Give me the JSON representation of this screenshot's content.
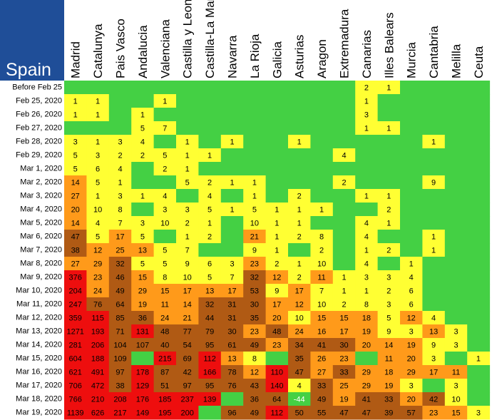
{
  "chart_data": {
    "type": "heatmap",
    "title": "Spain",
    "regions": [
      "Madrid",
      "Catalunya",
      "Pais Vasco",
      "Andalucia",
      "Valenciana",
      "Castilla y Leon",
      "Castilla-La Mancha",
      "Navarra",
      "La Rioja",
      "Galicia",
      "Asturias",
      "Aragon",
      "Extremadura",
      "Canarias",
      "Illes Balears",
      "Murcia",
      "Cantabria",
      "Melilla",
      "Ceuta"
    ],
    "dates": [
      "Before Feb 25",
      "Feb 25, 2020",
      "Feb 26, 2020",
      "Feb 27, 2020",
      "Feb 28, 2020",
      "Feb 29, 2020",
      "Mar 1, 2020",
      "Mar 2, 2020",
      "Mar 3, 2020",
      "Mar 4, 2020",
      "Mar 5, 2020",
      "Mar 6, 2020",
      "Mar 7, 2020",
      "Mar 8, 2020",
      "Mar 9, 2020",
      "Mar 10, 2020",
      "Mar 11, 2020",
      "Mar 12, 2020",
      "Mar 13, 2020",
      "Mar 14, 2020",
      "Mar 15, 2020",
      "Mar 16, 2020",
      "Mar 17, 2020",
      "Mar 18, 2020",
      "Mar 19, 2020"
    ],
    "values": [
      [
        null,
        null,
        null,
        null,
        null,
        null,
        null,
        null,
        null,
        null,
        null,
        null,
        null,
        2,
        1,
        null,
        null,
        null,
        null
      ],
      [
        1,
        1,
        null,
        null,
        1,
        null,
        null,
        null,
        null,
        null,
        null,
        null,
        null,
        1,
        null,
        null,
        null,
        null,
        null
      ],
      [
        1,
        1,
        null,
        1,
        null,
        null,
        null,
        null,
        null,
        null,
        null,
        null,
        null,
        3,
        null,
        null,
        null,
        null,
        null
      ],
      [
        null,
        null,
        null,
        5,
        7,
        null,
        null,
        null,
        null,
        null,
        null,
        null,
        null,
        1,
        1,
        null,
        null,
        null,
        null
      ],
      [
        3,
        1,
        3,
        4,
        null,
        1,
        null,
        1,
        null,
        null,
        1,
        null,
        null,
        null,
        null,
        null,
        1,
        null,
        null
      ],
      [
        5,
        3,
        2,
        2,
        5,
        1,
        1,
        null,
        null,
        null,
        null,
        null,
        4,
        null,
        null,
        null,
        null,
        null,
        null
      ],
      [
        5,
        6,
        4,
        null,
        2,
        1,
        null,
        null,
        null,
        null,
        null,
        null,
        null,
        null,
        null,
        null,
        null,
        null,
        null
      ],
      [
        14,
        5,
        1,
        null,
        null,
        5,
        2,
        1,
        1,
        null,
        null,
        null,
        2,
        null,
        null,
        null,
        9,
        null,
        null
      ],
      [
        27,
        1,
        3,
        1,
        4,
        null,
        4,
        null,
        1,
        null,
        2,
        null,
        null,
        1,
        1,
        null,
        null,
        null,
        null
      ],
      [
        20,
        10,
        8,
        null,
        3,
        3,
        5,
        1,
        5,
        1,
        1,
        1,
        null,
        null,
        2,
        null,
        null,
        null,
        null
      ],
      [
        14,
        4,
        7,
        3,
        10,
        2,
        1,
        null,
        10,
        1,
        1,
        null,
        null,
        4,
        1,
        null,
        null,
        null,
        null
      ],
      [
        47,
        5,
        17,
        5,
        null,
        1,
        2,
        null,
        21,
        1,
        2,
        8,
        null,
        4,
        null,
        null,
        1,
        null,
        null
      ],
      [
        38,
        12,
        25,
        13,
        5,
        7,
        null,
        null,
        9,
        1,
        null,
        2,
        null,
        1,
        2,
        null,
        1,
        null,
        null
      ],
      [
        27,
        29,
        32,
        5,
        5,
        9,
        6,
        3,
        23,
        2,
        1,
        10,
        null,
        4,
        null,
        1,
        null,
        null,
        null
      ],
      [
        376,
        23,
        46,
        15,
        8,
        10,
        5,
        7,
        32,
        12,
        2,
        11,
        1,
        3,
        3,
        4,
        null,
        null,
        null
      ],
      [
        204,
        24,
        49,
        29,
        15,
        17,
        13,
        17,
        53,
        9,
        17,
        7,
        1,
        1,
        2,
        6,
        null,
        null,
        null
      ],
      [
        247,
        76,
        64,
        19,
        11,
        14,
        32,
        31,
        30,
        17,
        12,
        10,
        2,
        8,
        3,
        6,
        null,
        null,
        null
      ],
      [
        359,
        115,
        85,
        36,
        24,
        21,
        44,
        31,
        35,
        20,
        10,
        15,
        15,
        18,
        5,
        12,
        4,
        null,
        null
      ],
      [
        1271,
        193,
        71,
        131,
        48,
        77,
        79,
        30,
        23,
        48,
        24,
        16,
        17,
        19,
        9,
        3,
        13,
        3,
        null
      ],
      [
        281,
        206,
        104,
        107,
        40,
        54,
        95,
        61,
        49,
        23,
        34,
        41,
        30,
        20,
        14,
        19,
        9,
        3,
        null
      ],
      [
        604,
        188,
        109,
        null,
        215,
        69,
        112,
        13,
        8,
        null,
        35,
        26,
        23,
        null,
        11,
        20,
        3,
        null,
        1
      ],
      [
        621,
        491,
        97,
        178,
        87,
        42,
        166,
        78,
        12,
        110,
        47,
        27,
        33,
        29,
        18,
        29,
        17,
        11,
        null
      ],
      [
        706,
        472,
        38,
        129,
        51,
        97,
        95,
        76,
        43,
        140,
        4,
        33,
        25,
        29,
        19,
        3,
        null,
        3,
        null
      ],
      [
        766,
        210,
        208,
        176,
        185,
        237,
        139,
        null,
        36,
        64,
        -44,
        49,
        19,
        41,
        33,
        20,
        42,
        10,
        null
      ],
      [
        1139,
        626,
        217,
        149,
        195,
        200,
        null,
        96,
        49,
        112,
        50,
        55,
        47,
        47,
        39,
        57,
        23,
        15,
        3
      ]
    ]
  },
  "colors": {
    "header_bg": "#1f4e98",
    "zero": "#44d044",
    "low": "#ffff33",
    "mid": "#ff9a1a",
    "high": "#b05a14",
    "top": "#ee0e0e",
    "negative": "#44d044"
  }
}
